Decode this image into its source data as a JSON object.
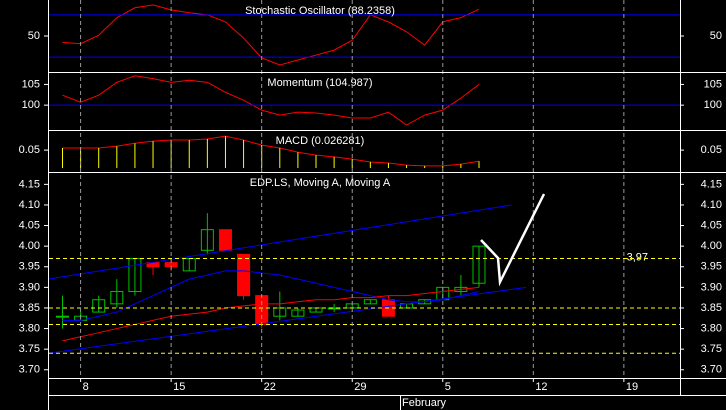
{
  "chart_data": [
    {
      "type": "line",
      "title": "Stochastic Oscillator (88.2358)",
      "x": [
        0,
        1,
        2,
        3,
        4,
        5,
        6,
        7,
        8,
        9,
        10,
        11,
        12,
        13,
        14,
        15,
        16,
        17,
        18,
        19,
        20,
        21,
        22,
        23
      ],
      "values": [
        41,
        39,
        51,
        76,
        90,
        94,
        87,
        83,
        80,
        70,
        47,
        19,
        9,
        16,
        23,
        30,
        44,
        80,
        70,
        56,
        37,
        70,
        76,
        88
      ],
      "color": "#ff0000",
      "ylim": [
        -1,
        101
      ],
      "yticks": [
        50
      ],
      "hlines": [
        80,
        20
      ],
      "hline_color": "#0000ff",
      "hline_style": "solid"
    },
    {
      "type": "line",
      "title": "Momentum (104.987)",
      "x": [
        0,
        1,
        2,
        3,
        4,
        5,
        6,
        7,
        8,
        9,
        10,
        11,
        12,
        13,
        14,
        15,
        16,
        17,
        18,
        19,
        20,
        21,
        22,
        23
      ],
      "values": [
        102.4,
        100.7,
        102.4,
        105.5,
        107.1,
        106.4,
        105.5,
        106,
        105.5,
        103.1,
        101.2,
        98.8,
        97.6,
        98.3,
        98.1,
        97.6,
        96.9,
        96.9,
        98.3,
        95.2,
        97.6,
        98.8,
        101.7,
        105.0
      ],
      "color": "#ff0000",
      "ylim": [
        94,
        108
      ],
      "yticks": [
        105,
        100
      ],
      "hlines": [
        100
      ],
      "hline_color": "#0000ff",
      "hline_style": "solid"
    },
    {
      "type": "bar",
      "title": "MACD (0.026281)",
      "x": [
        0,
        1,
        2,
        3,
        4,
        5,
        6,
        7,
        8,
        9,
        10,
        11,
        12,
        13,
        14,
        15,
        16,
        17,
        18,
        19,
        20,
        21,
        22,
        23
      ],
      "values": [
        0.056,
        0.056,
        0.056,
        0.061,
        0.069,
        0.075,
        0.078,
        0.078,
        0.081,
        0.089,
        0.078,
        0.064,
        0.056,
        0.044,
        0.036,
        0.031,
        0.025,
        0.017,
        0.014,
        0.008,
        0.006,
        0.006,
        0.011,
        0.019
      ],
      "color": "#ffff00",
      "line_color": "#ff0000",
      "ylim": [
        -0.011,
        0.106
      ],
      "yticks": [
        0.05
      ]
    },
    {
      "type": "candlestick",
      "title": "EDP.LS, Moving A, Moving A",
      "x": [
        0,
        1,
        2,
        3,
        4,
        5,
        6,
        7,
        8,
        9,
        10,
        11,
        12,
        13,
        14,
        15,
        16,
        17,
        18,
        19,
        20,
        21,
        22,
        23
      ],
      "open": [
        3.83,
        3.82,
        3.84,
        3.86,
        3.89,
        3.96,
        3.96,
        3.94,
        3.99,
        4.04,
        3.98,
        3.88,
        3.83,
        3.83,
        3.84,
        3.85,
        3.85,
        3.86,
        3.87,
        3.85,
        3.86,
        3.87,
        3.89,
        3.91
      ],
      "high": [
        3.88,
        3.84,
        3.88,
        3.92,
        3.97,
        3.96,
        3.97,
        3.97,
        4.08,
        4.04,
        3.98,
        3.88,
        3.89,
        3.85,
        3.85,
        3.86,
        3.86,
        3.87,
        3.88,
        3.86,
        3.87,
        3.9,
        3.93,
        4.0
      ],
      "low": [
        3.8,
        3.82,
        3.84,
        3.85,
        3.88,
        3.93,
        3.94,
        3.94,
        3.98,
        3.99,
        3.87,
        3.8,
        3.82,
        3.83,
        3.84,
        3.84,
        3.85,
        3.86,
        3.83,
        3.85,
        3.86,
        3.87,
        3.88,
        3.9
      ],
      "close": [
        3.83,
        3.83,
        3.87,
        3.89,
        3.97,
        3.95,
        3.95,
        3.97,
        4.04,
        3.99,
        3.88,
        3.81,
        3.85,
        3.845,
        3.85,
        3.85,
        3.86,
        3.87,
        3.83,
        3.86,
        3.87,
        3.9,
        3.9,
        4.0
      ],
      "up_color": "#00c000",
      "down_color": "#ff0000",
      "series": [
        {
          "color": "#ff0000",
          "values": [
            3.77,
            3.78,
            3.79,
            3.8,
            3.81,
            3.82,
            3.83,
            3.835,
            3.84,
            3.85,
            3.855,
            3.86,
            3.86,
            3.865,
            3.87,
            3.87,
            3.875,
            3.875,
            3.88,
            3.88,
            3.885,
            3.89,
            3.895,
            3.9
          ]
        },
        {
          "color": "#0000ff",
          "values": [
            3.82,
            3.82,
            3.83,
            3.84,
            3.86,
            3.88,
            3.9,
            3.92,
            3.93,
            3.94,
            3.94,
            3.935,
            3.93,
            3.92,
            3.91,
            3.9,
            3.89,
            3.88,
            3.87,
            3.865,
            3.865,
            3.87,
            3.88,
            3.89
          ]
        }
      ],
      "trendlines": [
        {
          "x": [
            -0.8,
            24.8
          ],
          "y": [
            3.92,
            4.1
          ]
        },
        {
          "x": [
            -0.8,
            25.6
          ],
          "y": [
            3.74,
            3.9
          ]
        }
      ],
      "trendline_color": "#0000ff",
      "hlines": [
        {
          "value": 3.97,
          "label": "3,97"
        },
        3.85,
        3.81,
        3.74
      ],
      "hline_color": "#ffff00",
      "hline_style": "dashed",
      "xlim": [
        -0.8,
        34.1
      ],
      "xticks": [
        {
          "value": 1,
          "label": "8"
        },
        {
          "value": 6,
          "label": "15"
        },
        {
          "value": 11,
          "label": "22"
        },
        {
          "value": 16,
          "label": "29"
        },
        {
          "value": 21,
          "label": "5"
        },
        {
          "value": 26,
          "label": "12"
        },
        {
          "value": 31,
          "label": "19"
        }
      ],
      "x_group_label": "February",
      "ylim": [
        3.68,
        4.18
      ],
      "yticks": [
        4.15,
        {
          "value": 4.1,
          "label": "4.10"
        },
        4.05,
        {
          "value": 4.0,
          "label": "4.00"
        },
        3.95,
        {
          "value": 3.9,
          "label": "3.90"
        },
        3.85,
        {
          "value": 3.8,
          "label": "3.80"
        },
        3.75,
        {
          "value": 3.7,
          "label": "3.70"
        }
      ]
    }
  ]
}
